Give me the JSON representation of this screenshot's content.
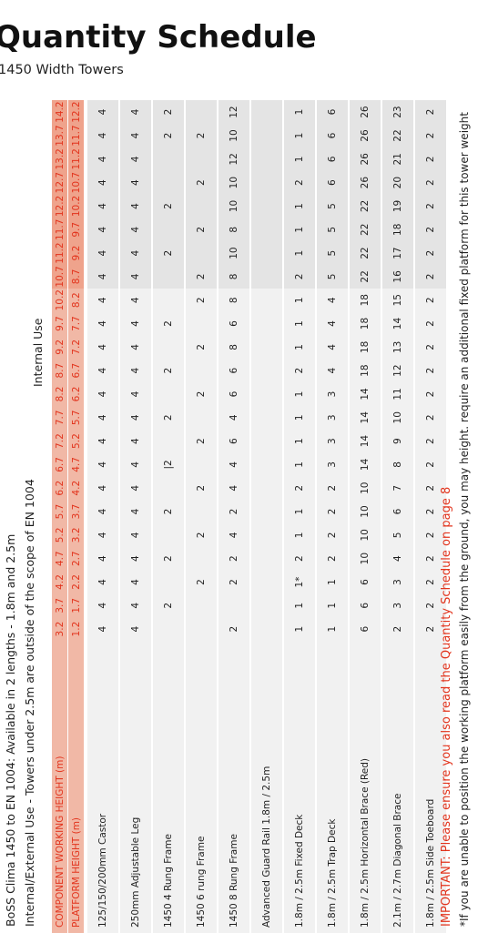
{
  "title": "Quantity Schedule",
  "subtitle": "1450 Width Towers",
  "info_line_1": "BoSS Clima 1450 to EN 1004: Available in 2 lengths - 1.8m and 2.5m",
  "info_line_2": "Internal/External Use - Towers under 2.5m are outside of the scope of EN 1004",
  "internal_use_label": "Internal Use",
  "table": {
    "header": {
      "working_height_label": "COMPONENT WORKING HEIGHT (m)",
      "platform_height_label": "PLATFORM HEIGHT (m)",
      "working_heights": [
        "3.2",
        "3.7",
        "4.2",
        "4.7",
        "5.2",
        "5.7",
        "6.2",
        "6.7",
        "7.2",
        "7.7",
        "8.2",
        "8.7",
        "9.2",
        "9.7",
        "10.2",
        "10.7",
        "11.2",
        "11.7",
        "12.2",
        "12.7",
        "13.2",
        "13.7",
        "14.2"
      ],
      "platform_heights": [
        "1.2",
        "1.7",
        "2.2",
        "2.7",
        "3.2",
        "3.7",
        "4.2",
        "4.7",
        "5.2",
        "5.7",
        "6.2",
        "6.7",
        "7.2",
        "7.7",
        "8.2",
        "8.7",
        "9.2",
        "9.7",
        "10.2",
        "10.7",
        "11.2",
        "11.7",
        "12.2"
      ]
    },
    "rows": [
      {
        "name": "125/150/200mm Castor",
        "values": [
          "4",
          "4",
          "4",
          "4",
          "4",
          "4",
          "4",
          "4",
          "4",
          "4",
          "4",
          "4",
          "4",
          "4",
          "4",
          "4",
          "4",
          "4",
          "4",
          "4",
          "4",
          "4",
          "4"
        ]
      },
      {
        "name": "250mm Adjustable Leg",
        "values": [
          "4",
          "4",
          "4",
          "4",
          "4",
          "4",
          "4",
          "4",
          "4",
          "4",
          "4",
          "4",
          "4",
          "4",
          "4",
          "4",
          "4",
          "4",
          "4",
          "4",
          "4",
          "4",
          "4"
        ]
      },
      {
        "name": "1450 4 Rung Frame",
        "values": [
          "",
          "2",
          "",
          "2",
          "",
          "2",
          "",
          "|2",
          "",
          "2",
          "",
          "2",
          "",
          "2",
          "",
          "",
          "2",
          "",
          "2",
          "",
          "",
          "2",
          "2"
        ]
      },
      {
        "name": "1450 6 rung Frame",
        "values": [
          "",
          "",
          "2",
          "",
          "2",
          "",
          "2",
          "",
          "2",
          "",
          "2",
          "",
          "2",
          "",
          "2",
          "2",
          "",
          "2",
          "",
          "2",
          "",
          "2",
          ""
        ]
      },
      {
        "name": "1450 8 Rung Frame",
        "values": [
          "2",
          "",
          "2",
          "2",
          "4",
          "2",
          "4",
          "4",
          "6",
          "4",
          "6",
          "6",
          "8",
          "6",
          "8",
          "8",
          "10",
          "8",
          "10",
          "10",
          "12",
          "10",
          "12"
        ]
      },
      {
        "name": "Advanced Guard Rail 1.8m / 2.5m",
        "values": [
          "",
          "",
          "",
          "",
          "",
          "",
          "",
          "",
          "",
          "",
          "",
          "",
          "",
          "",
          "",
          "",
          "",
          "",
          "",
          "",
          "",
          "",
          ""
        ]
      },
      {
        "name": "1.8m / 2.5m Fixed Deck",
        "values": [
          "1",
          "1",
          "1*",
          "2",
          "1",
          "1",
          "2",
          "1",
          "1",
          "1",
          "1",
          "2",
          "1",
          "1",
          "1",
          "2",
          "1",
          "1",
          "1",
          "2",
          "1",
          "1",
          "1"
        ]
      },
      {
        "name": "1.8m / 2.5m Trap Deck",
        "values": [
          "1",
          "1",
          "1",
          "2",
          "2",
          "2",
          "2",
          "3",
          "3",
          "3",
          "3",
          "4",
          "4",
          "4",
          "4",
          "5",
          "5",
          "5",
          "5",
          "6",
          "6",
          "6",
          "6"
        ]
      },
      {
        "name": "1.8m / 2.5m Horizontal Brace (Red)",
        "values": [
          "6",
          "6",
          "6",
          "10",
          "10",
          "10",
          "10",
          "14",
          "14",
          "14",
          "14",
          "18",
          "18",
          "18",
          "18",
          "22",
          "22",
          "22",
          "22",
          "26",
          "26",
          "26",
          "26"
        ]
      },
      {
        "name": "2.1m / 2.7m Diagonal Brace",
        "values": [
          "2",
          "3",
          "3",
          "4",
          "5",
          "6",
          "7",
          "8",
          "9",
          "10",
          "11",
          "12",
          "13",
          "14",
          "15",
          "16",
          "17",
          "18",
          "19",
          "20",
          "21",
          "22",
          "23"
        ]
      },
      {
        "name": "1.8m / 2.5m Side Toeboard",
        "values": [
          "2",
          "2",
          "2",
          "2",
          "2",
          "2",
          "2",
          "2",
          "2",
          "2",
          "2",
          "2",
          "2",
          "2",
          "2",
          "2",
          "2",
          "2",
          "2",
          "2",
          "2",
          "2",
          "2"
        ]
      }
    ]
  },
  "important_note": "IMPORTANT: Please ensure you also read the Quantity Schedule on page 8",
  "footnote": "*If you are unable to position the working platform easily from the ground, you may height. require an additional fixed platform for this tower weight",
  "colors": {
    "accent_red": "#e2341d",
    "header_bg": "#f1b8a6",
    "header_bg_internal": "#efa38c",
    "row_bg": "#f1f1f1",
    "row_bg_internal": "#e4e4e4"
  }
}
